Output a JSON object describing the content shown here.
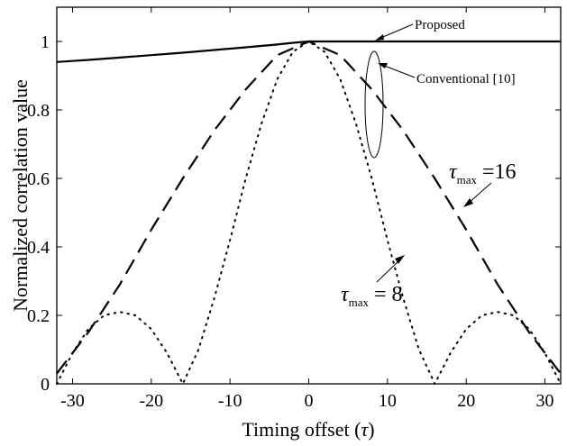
{
  "chart_data": {
    "type": "line",
    "title": "",
    "xlabel": "Timing offset (τ)",
    "xlabel_text": "Timing offset (",
    "xlabel_symbol": "τ",
    "xlabel_close": ")",
    "ylabel": "Normalized correlation value",
    "xlim": [
      -32,
      32
    ],
    "ylim": [
      0,
      1.1
    ],
    "xticks": [
      -30,
      -20,
      -10,
      0,
      10,
      20,
      30
    ],
    "yticks": [
      0,
      0.2,
      0.4,
      0.6,
      0.8,
      1
    ],
    "xtick_labels": [
      "-30",
      "-20",
      "-10",
      "0",
      "10",
      "20",
      "30"
    ],
    "ytick_labels": [
      "0",
      "0.2",
      "0.4",
      "0.6",
      "0.8",
      "1"
    ],
    "grid": false,
    "series": [
      {
        "name": "Proposed",
        "style": "solid",
        "x": [
          -32,
          -28,
          -24,
          -20,
          -16,
          -12,
          -8,
          -4,
          -2,
          0,
          4,
          8,
          12,
          16,
          20,
          24,
          28,
          32
        ],
        "y": [
          0.94,
          0.946,
          0.953,
          0.96,
          0.967,
          0.975,
          0.983,
          0.991,
          0.996,
          1.0,
          1.0,
          1.0,
          1.0,
          1.0,
          1.0,
          1.0,
          1.0,
          1.0
        ]
      },
      {
        "name": "Conventional [10], τmax = 16",
        "style": "dashed",
        "x": [
          -32,
          -28,
          -24,
          -20,
          -16,
          -12,
          -8,
          -4,
          0,
          4,
          8,
          12,
          16,
          20,
          24,
          28,
          32
        ],
        "y": [
          0.03,
          0.15,
          0.29,
          0.45,
          0.6,
          0.74,
          0.86,
          0.96,
          1.0,
          0.96,
          0.86,
          0.74,
          0.6,
          0.45,
          0.29,
          0.15,
          0.03
        ]
      },
      {
        "name": "Conventional [10], τmax = 8",
        "style": "dotted",
        "x": [
          -32,
          -30,
          -28,
          -26,
          -24,
          -22,
          -20,
          -18,
          -16,
          -14,
          -12,
          -10,
          -8,
          -6,
          -4,
          -2,
          0,
          2,
          4,
          6,
          8,
          10,
          12,
          14,
          16,
          18,
          20,
          22,
          24,
          26,
          28,
          30,
          32
        ],
        "y": [
          0.0,
          0.09,
          0.16,
          0.2,
          0.21,
          0.2,
          0.16,
          0.09,
          0.0,
          0.1,
          0.25,
          0.42,
          0.6,
          0.76,
          0.89,
          0.97,
          1.0,
          0.97,
          0.89,
          0.76,
          0.6,
          0.42,
          0.25,
          0.1,
          0.0,
          0.09,
          0.16,
          0.2,
          0.21,
          0.2,
          0.16,
          0.09,
          0.0
        ]
      }
    ],
    "annotations": {
      "proposed": "Proposed",
      "conventional": "Conventional [10]",
      "tau16_symbol": "τ",
      "tau16_sub": "max",
      "tau16_value": "=16",
      "tau8_symbol": "τ",
      "tau8_sub": "max",
      "tau8_value": "= 8"
    }
  }
}
